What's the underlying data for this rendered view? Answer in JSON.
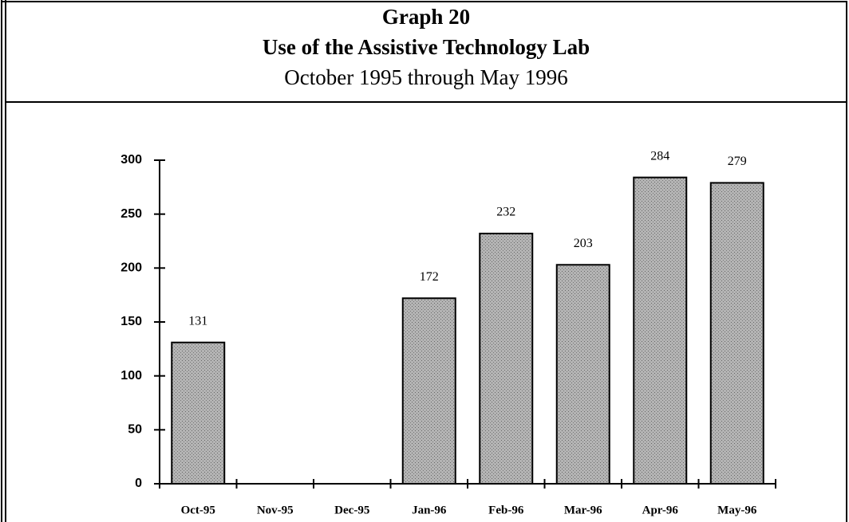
{
  "chart_data": {
    "type": "bar",
    "title": "Graph 20",
    "subtitle": "Use of the Assistive Technology Lab",
    "date_range": "October 1995 through May 1996",
    "categories": [
      "Oct-95",
      "Nov-95",
      "Dec-95",
      "Jan-96",
      "Feb-96",
      "Mar-96",
      "Apr-96",
      "May-96"
    ],
    "values": [
      131,
      null,
      null,
      172,
      232,
      203,
      284,
      279
    ],
    "color": "#a8a8a8",
    "ylim": [
      0,
      300
    ],
    "yticks": [
      0,
      50,
      100,
      150,
      200,
      250,
      300
    ],
    "grid": false
  }
}
